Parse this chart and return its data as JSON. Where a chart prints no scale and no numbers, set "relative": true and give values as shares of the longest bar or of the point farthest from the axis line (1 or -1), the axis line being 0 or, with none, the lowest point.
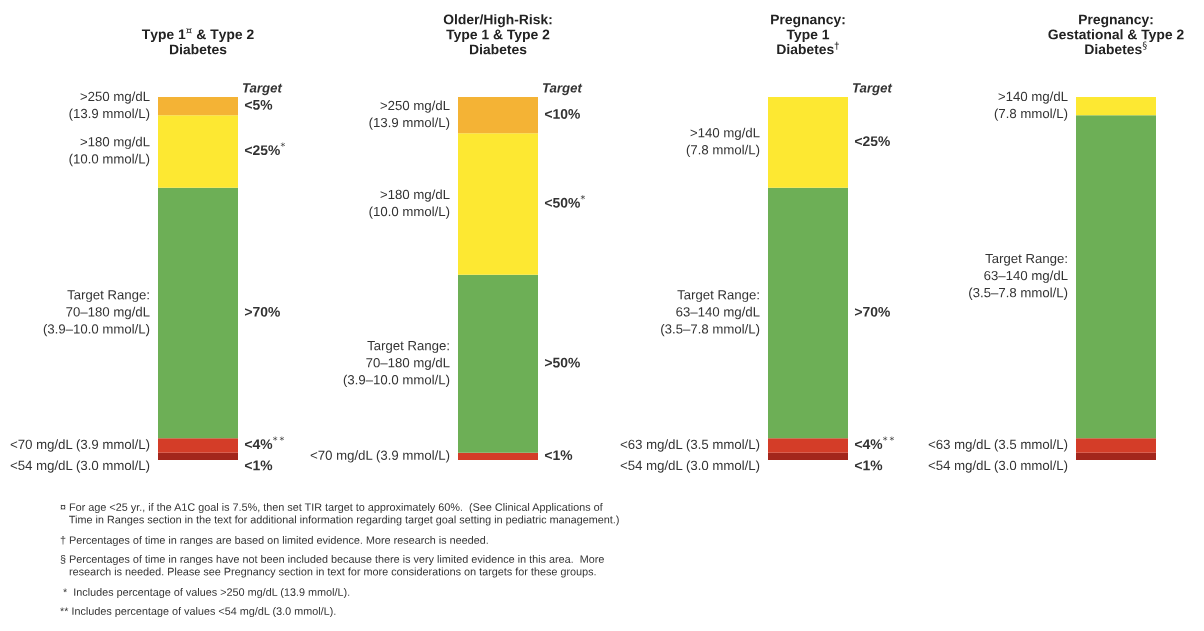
{
  "chart_data": [
    {
      "type": "bar",
      "stacked": true,
      "relative": true,
      "title": "Type 1$^{¤}$ & Type 2\nDiabetes",
      "categories": [
        null
      ],
      "annotations": [
        "Target",
        "<1%",
        "<4%$^{**}$",
        ">70%",
        "<25%$^{*}$",
        "<5%"
      ],
      "series": [
        {
          "name": "<54 mg/dL (3.0 mmol/L)",
          "color": "#a3261c",
          "values": [
            0.02
          ]
        },
        {
          "name": "<70 mg/dL (3.9 mmol/L)",
          "color": "#d43d28",
          "values": [
            0.04
          ]
        },
        {
          "name": "Target Range:\n70–180 mg/dL\n(3.9–10.0 mmol/L)",
          "color": "#6daf56",
          "values": [
            0.69
          ]
        },
        {
          "name": ">180 mg/dL\n(10.0 mmol/L)",
          "color": "#fde832",
          "values": [
            0.2
          ]
        },
        {
          "name": ">250 mg/dL\n(13.9 mmol/L)",
          "color": "#f4b335",
          "values": [
            0.05
          ]
        }
      ]
    },
    {
      "type": "bar",
      "stacked": true,
      "relative": true,
      "title": "Older/High-Risk:\nType 1 & Type 2\nDiabetes",
      "categories": [
        null
      ],
      "annotations": [
        "Target",
        "<1%",
        ">50%",
        "<50%$^{*}$",
        "<10%"
      ],
      "series": [
        {
          "name": "<70 mg/dL (3.9 mmol/L)",
          "color": "#d43d28",
          "values": [
            0.02
          ]
        },
        {
          "name": "Target Range:\n70–180 mg/dL\n(3.9–10.0 mmol/L)",
          "color": "#6daf56",
          "values": [
            0.49
          ]
        },
        {
          "name": ">180 mg/dL\n(10.0 mmol/L)",
          "color": "#fde832",
          "values": [
            0.39
          ]
        },
        {
          "name": ">250 mg/dL\n(13.9 mmol/L)",
          "color": "#f4b335",
          "values": [
            0.1
          ]
        }
      ]
    },
    {
      "type": "bar",
      "stacked": true,
      "relative": true,
      "title": "Pregnancy:\nType 1\nDiabetes$^{†}$",
      "categories": [
        null
      ],
      "annotations": [
        "Target",
        "<1%",
        "<4%$^{**}$",
        ">70%",
        "<25%"
      ],
      "series": [
        {
          "name": "<54 mg/dL (3.0 mmol/L)",
          "color": "#a3261c",
          "values": [
            0.02
          ]
        },
        {
          "name": "<63 mg/dL (3.5 mmol/L)",
          "color": "#d43d28",
          "values": [
            0.04
          ]
        },
        {
          "name": "Target Range:\n63–140 mg/dL\n(3.5–7.8 mmol/L)",
          "color": "#6daf56",
          "values": [
            0.69
          ]
        },
        {
          "name": ">140 mg/dL\n(7.8 mmol/L)",
          "color": "#fde832",
          "values": [
            0.25
          ]
        }
      ]
    },
    {
      "type": "bar",
      "stacked": true,
      "relative": true,
      "title": "Pregnancy:\nGestational & Type 2\nDiabetes$^{§}$",
      "categories": [
        null
      ],
      "series": [
        {
          "name": "<54 mg/dL (3.0 mmol/L)",
          "color": "#a3261c",
          "values": [
            0.02
          ]
        },
        {
          "name": "<63 mg/dL (3.5 mmol/L)",
          "color": "#d43d28",
          "values": [
            0.04
          ]
        },
        {
          "name": "Target Range:\n63–140 mg/dL\n(3.5–7.8 mmol/L)",
          "color": "#6daf56",
          "values": [
            0.89
          ]
        },
        {
          "name": ">140 mg/dL\n(7.8 mmol/L)",
          "color": "#fde832",
          "values": [
            0.05
          ]
        }
      ]
    },
    {
      "type": "other",
      "annotations": [
        "¤ For age <25 yr., if the A1C goal is 7.5%, then set TIR target to approximately 60%.  (See Clinical Applications of\n   Time in Ranges section in the text for additional information regarding target goal setting in pediatric management.)",
        "† Percentages of time in ranges are based on limited evidence. More research is needed.",
        "§ Percentages of time in ranges have not been included because there is very limited evidence in this area.  More\n   research is needed. Please see Pregnancy section in text for more considerations on targets for these groups.",
        " *  Includes percentage of values >250 mg/dL (13.9 mmol/L).",
        "** Includes percentage of values <54 mg/dL (3.0 mmol/L)."
      ]
    }
  ]
}
